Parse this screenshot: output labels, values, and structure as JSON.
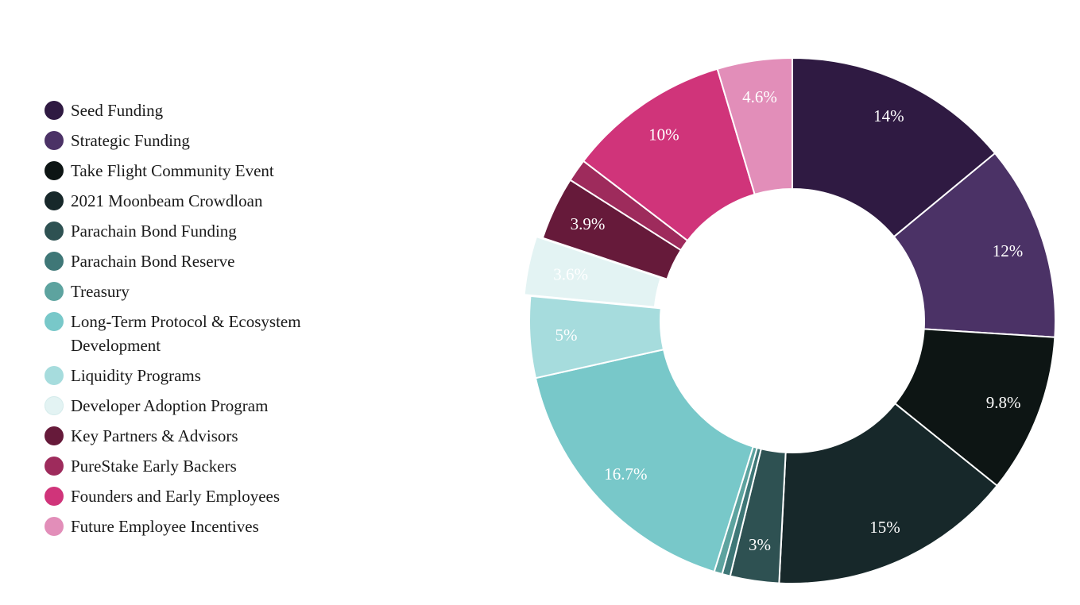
{
  "chart_data": {
    "type": "pie",
    "title": "",
    "donut": true,
    "legend_position": "left",
    "categories": [
      "Seed Funding",
      "Strategic Funding",
      "Take Flight Community Event",
      "2021 Moonbeam Crowdloan",
      "Parachain Bond Funding",
      "Parachain Bond Reserve",
      "Treasury",
      "Long-Term Protocol & Ecosystem Development",
      "Liquidity Programs",
      "Developer Adoption Program",
      "Key Partners & Advisors",
      "PureStake Early Backers",
      "Founders and Early Employees",
      "Future Employee Incentives"
    ],
    "values": [
      14,
      12,
      9.8,
      15,
      3,
      0.5,
      0.5,
      16.7,
      5,
      3.6,
      3.9,
      1.4,
      10,
      4.6
    ],
    "labels": [
      "14%",
      "12%",
      "9.8%",
      "15%",
      "3%",
      "",
      "",
      "16.7%",
      "5%",
      "3.6%",
      "3.9%",
      "",
      "10%",
      "4.6%"
    ],
    "colors": [
      "#2f1a42",
      "#4b3266",
      "#0d1514",
      "#17282a",
      "#2e5152",
      "#3f7777",
      "#5da39f",
      "#78c8c9",
      "#a6dcdd",
      "#e3f3f3",
      "#661a3a",
      "#9e2b5c",
      "#d0347a",
      "#e28eb9"
    ],
    "label_colors": [
      "#ffffff",
      "#ffffff",
      "#ffffff",
      "#ffffff",
      "#ffffff",
      "#ffffff",
      "#ffffff",
      "#ffffff",
      "#ffffff",
      "#ffffff",
      "#ffffff",
      "#ffffff",
      "#ffffff",
      "#ffffff"
    ],
    "exploded_category": "Developer Adoption Program"
  }
}
